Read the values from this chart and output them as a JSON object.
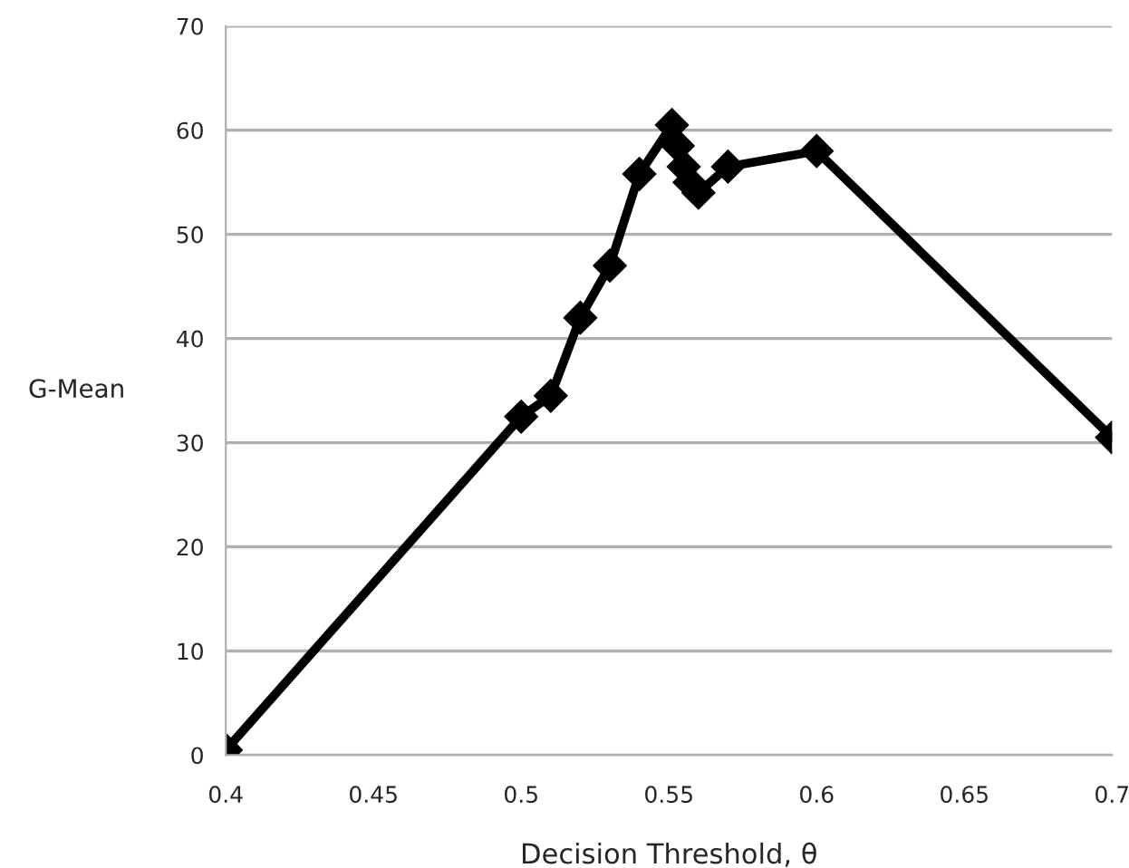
{
  "chart_data": {
    "type": "line",
    "xlabel": "Decision Threshold, θ",
    "ylabel": "G-Mean",
    "x": [
      0.4,
      0.5,
      0.51,
      0.52,
      0.53,
      0.54,
      0.551,
      0.553,
      0.555,
      0.557,
      0.56,
      0.57,
      0.6,
      0.7
    ],
    "series": [
      {
        "color": "#000000",
        "values": [
          0.5,
          32.5,
          34.5,
          42,
          47,
          55.8,
          60.5,
          58.5,
          56.5,
          55,
          54,
          56.5,
          58,
          30.5
        ]
      }
    ],
    "xlim": [
      0.4,
      0.7
    ],
    "xticks": [
      0.4,
      0.45,
      0.5,
      0.55,
      0.6,
      0.65,
      0.7
    ],
    "ylim": [
      0,
      70
    ],
    "yticks": [
      0,
      10,
      20,
      30,
      40,
      50,
      60,
      70
    ],
    "grid": "y",
    "marker": "diamond",
    "line_style": "solid"
  }
}
